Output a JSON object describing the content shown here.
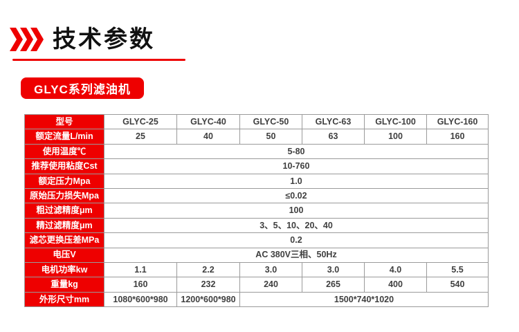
{
  "page": {
    "title": "技术参数",
    "series_badge": "GLYC系列滤油机"
  },
  "colors": {
    "accent_red": "#ee0000",
    "title_text": "#111111",
    "cell_text": "#3f3f3f",
    "inner_border": "#9a9a9a",
    "outer_border": "#565656"
  },
  "table": {
    "header": {
      "label": "型号",
      "models": [
        "GLYC-25",
        "GLYC-40",
        "GLYC-50",
        "GLYC-63",
        "GLYC-100",
        "GLYC-160"
      ]
    },
    "rows": [
      {
        "label": "额定流量L/min",
        "cells": [
          {
            "text": "25"
          },
          {
            "text": "40"
          },
          {
            "text": "50"
          },
          {
            "text": "63"
          },
          {
            "text": "100"
          },
          {
            "text": "160"
          }
        ]
      },
      {
        "label": "使用温度℃",
        "cells": [
          {
            "text": "5-80",
            "span": 6
          }
        ]
      },
      {
        "label": "推荐使用粘度Cst",
        "cells": [
          {
            "text": "10-760",
            "span": 6
          }
        ]
      },
      {
        "label": "额定压力Mpa",
        "cells": [
          {
            "text": "1.0",
            "span": 6
          }
        ]
      },
      {
        "label": "原始压力损失Mpa",
        "cells": [
          {
            "text": "≤0.02",
            "span": 6
          }
        ]
      },
      {
        "label": "粗过滤精度μm",
        "cells": [
          {
            "text": "100",
            "span": 6
          }
        ]
      },
      {
        "label": "精过滤精度μm",
        "cells": [
          {
            "text": "3、5、10、20、40",
            "span": 6
          }
        ]
      },
      {
        "label": "滤芯更换压差MPa",
        "cells": [
          {
            "text": "0.2",
            "span": 6
          }
        ]
      },
      {
        "label": "电压V",
        "cells": [
          {
            "text": "AC 380V三相、50Hz",
            "span": 6
          }
        ]
      },
      {
        "label": "电机功率kw",
        "cells": [
          {
            "text": "1.1"
          },
          {
            "text": "2.2"
          },
          {
            "text": "3.0"
          },
          {
            "text": "3.0"
          },
          {
            "text": "4.0"
          },
          {
            "text": "5.5"
          }
        ]
      },
      {
        "label": "重量kg",
        "cells": [
          {
            "text": "160"
          },
          {
            "text": "232"
          },
          {
            "text": "240"
          },
          {
            "text": "265"
          },
          {
            "text": "400"
          },
          {
            "text": "540"
          }
        ]
      },
      {
        "label": "外形尺寸mm",
        "cells": [
          {
            "text": "1080*600*980"
          },
          {
            "text": "1200*600*980"
          },
          {
            "text": "1500*740*1020",
            "span": 4
          }
        ]
      }
    ]
  }
}
